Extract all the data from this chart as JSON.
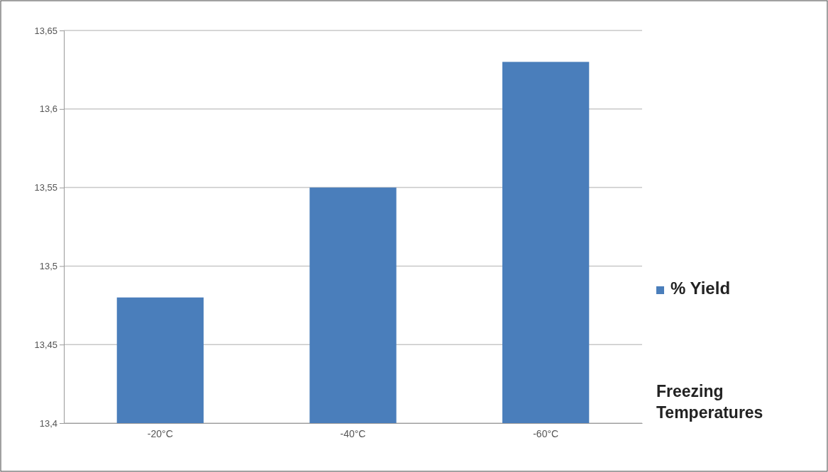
{
  "chart_data": {
    "type": "bar",
    "xlabel": "Freezing Temperatures",
    "categories": [
      "-20°C",
      "-40°C",
      "-60°C"
    ],
    "series": [
      {
        "name": "% Yield",
        "color": "#4a7ebb",
        "values": [
          13.48,
          13.55,
          13.63
        ]
      }
    ],
    "ylim": [
      13.4,
      13.65
    ],
    "yticks": [
      {
        "value": 13.4,
        "label": "13,4"
      },
      {
        "value": 13.45,
        "label": "13,45"
      },
      {
        "value": 13.5,
        "label": "13,5"
      },
      {
        "value": 13.55,
        "label": "13,55"
      },
      {
        "value": 13.6,
        "label": "13,6"
      },
      {
        "value": 13.65,
        "label": "13,65"
      }
    ],
    "grid": "y",
    "legend": "right"
  }
}
